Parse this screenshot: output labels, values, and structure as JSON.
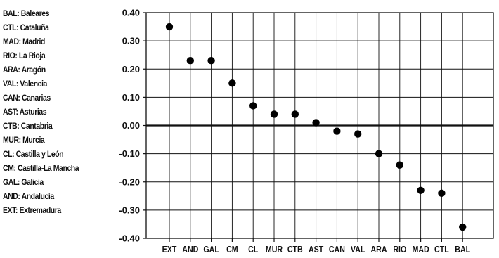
{
  "legend": [
    "BAL: Baleares",
    "CTL: Cataluña",
    "MAD: Madrid",
    "RIO: La Rioja",
    "ARA: Aragón",
    "VAL: Valencia",
    "CAN: Canarias",
    "AST: Asturias",
    "CTB: Cantabria",
    "MUR: Murcia",
    "CL: Castilla y León",
    "CM: Castilla-La Mancha",
    "GAL: Galicia",
    "AND: Andalucía",
    "EXT: Extremadura"
  ],
  "chart_data": {
    "type": "scatter",
    "title": "",
    "xlabel": "",
    "ylabel": "",
    "categories": [
      "EXT",
      "AND",
      "GAL",
      "CM",
      "CL",
      "MUR",
      "CTB",
      "AST",
      "CAN",
      "VAL",
      "ARA",
      "RIO",
      "MAD",
      "CTL",
      "BAL"
    ],
    "values": [
      0.35,
      0.23,
      0.23,
      0.15,
      0.07,
      0.04,
      0.04,
      0.01,
      -0.02,
      -0.03,
      -0.1,
      -0.14,
      -0.23,
      -0.24,
      -0.36
    ],
    "yticks": [
      "0.40",
      "0.30",
      "0.20",
      "0.10",
      "0.00",
      "-0.10",
      "-0.20",
      "-0.30",
      "-0.40"
    ],
    "ylim": [
      -0.4,
      0.4
    ],
    "grid": true,
    "zero_line": true
  }
}
